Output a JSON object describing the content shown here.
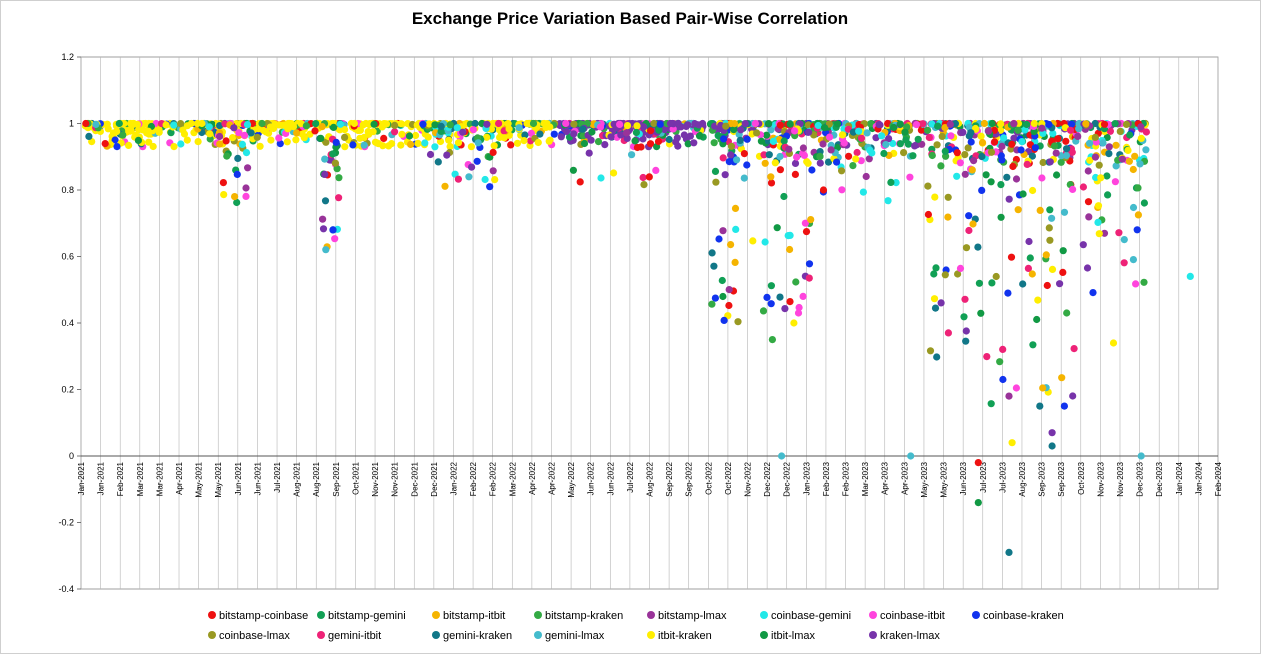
{
  "chart_data": {
    "type": "scatter",
    "title": "Exchange Price Variation Based Pair-Wise Correlation",
    "xlabel": "",
    "ylabel": "",
    "ylim": [
      -0.4,
      1.2
    ],
    "yticks": [
      "1.2",
      "1",
      "0.8",
      "0.6",
      "0.4",
      "0.2",
      "0",
      "-0.2",
      "-0.4"
    ],
    "x_tick_labels": [
      "Jan-2021",
      "Jan-2021",
      "Feb-2021",
      "Mar-2021",
      "Mar-2021",
      "Apr-2021",
      "May-2021",
      "May-2021",
      "Jun-2021",
      "Jun-2021",
      "Jul-2021",
      "Aug-2021",
      "Aug-2021",
      "Sep-2021",
      "Oct-2021",
      "Nov-2021",
      "Nov-2021",
      "Dec-2021",
      "Dec-2021",
      "Jan-2022",
      "Feb-2022",
      "Feb-2022",
      "Mar-2022",
      "Apr-2022",
      "Apr-2022",
      "May-2022",
      "Jun-2022",
      "Jun-2022",
      "Jul-2022",
      "Aug-2022",
      "Sep-2022",
      "Sep-2022",
      "Oct-2022",
      "Oct-2022",
      "Nov-2022",
      "Dec-2022",
      "Dec-2022",
      "Jan-2023",
      "Feb-2023",
      "Feb-2023",
      "Mar-2023",
      "Apr-2023",
      "Apr-2023",
      "May-2023",
      "May-2023",
      "Jun-2023",
      "Jul-2023",
      "Jul-2023",
      "Aug-2023",
      "Sep-2023",
      "Sep-2023",
      "Oct-2023",
      "Nov-2023",
      "Nov-2023",
      "Dec-2023",
      "Dec-2023",
      "Jan-2024",
      "Jan-2024",
      "Feb-2024"
    ],
    "x_range_months": [
      0,
      37
    ],
    "grid": "vertical",
    "legend_position": "bottom",
    "series": [
      {
        "name": "bitstamp-coinbase",
        "color": "#ee1111"
      },
      {
        "name": "bitstamp-gemini",
        "color": "#11a055"
      },
      {
        "name": "bitstamp-itbit",
        "color": "#f5b400"
      },
      {
        "name": "bitstamp-kraken",
        "color": "#33aa44"
      },
      {
        "name": "bitstamp-lmax",
        "color": "#993399"
      },
      {
        "name": "coinbase-gemini",
        "color": "#22e8e8"
      },
      {
        "name": "coinbase-itbit",
        "color": "#ff44dd"
      },
      {
        "name": "coinbase-kraken",
        "color": "#1133ee"
      },
      {
        "name": "coinbase-lmax",
        "color": "#999922"
      },
      {
        "name": "gemini-itbit",
        "color": "#ee2277"
      },
      {
        "name": "gemini-kraken",
        "color": "#117788"
      },
      {
        "name": "gemini-lmax",
        "color": "#44bbcc"
      },
      {
        "name": "itbit-kraken",
        "color": "#ffee00"
      },
      {
        "name": "itbit-lmax",
        "color": "#119944"
      },
      {
        "name": "kraken-lmax",
        "color": "#7733aa"
      }
    ],
    "notable_points": [
      {
        "series": "gemini-kraken",
        "month": 8.2,
        "value": 0.68
      },
      {
        "series": "coinbase-kraken",
        "month": 8.2,
        "value": 0.68
      },
      {
        "series": "bitstamp-itbit",
        "month": 5.0,
        "value": 0.78
      },
      {
        "series": "coinbase-kraken",
        "month": 13.3,
        "value": 0.81
      },
      {
        "series": "gemini-lmax",
        "month": 22.8,
        "value": 0.0
      },
      {
        "series": "gemini-lmax",
        "month": 27.0,
        "value": 0.0
      },
      {
        "series": "gemini-lmax",
        "month": 34.5,
        "value": 0.0
      },
      {
        "series": "bitstamp-kraken",
        "month": 22.5,
        "value": 0.35
      },
      {
        "series": "itbit-kraken",
        "month": 23.2,
        "value": 0.4
      },
      {
        "series": "coinbase-itbit",
        "month": 23.5,
        "value": 0.48
      },
      {
        "series": "itbit-lmax",
        "month": 29.2,
        "value": -0.14
      },
      {
        "series": "bitstamp-coinbase",
        "month": 29.2,
        "value": -0.02
      },
      {
        "series": "gemini-kraken",
        "month": 30.2,
        "value": -0.29
      },
      {
        "series": "itbit-kraken",
        "month": 30.3,
        "value": 0.04
      },
      {
        "series": "bitstamp-lmax",
        "month": 30.2,
        "value": 0.18
      },
      {
        "series": "coinbase-kraken",
        "month": 30.0,
        "value": 0.23
      },
      {
        "series": "gemini-kraken",
        "month": 31.2,
        "value": 0.15
      },
      {
        "series": "coinbase-kraken",
        "month": 32.0,
        "value": 0.15
      },
      {
        "series": "itbit-kraken",
        "month": 33.6,
        "value": 0.34
      },
      {
        "series": "coinbase-gemini",
        "month": 36.1,
        "value": 0.54
      },
      {
        "series": "kraken-lmax",
        "month": 31.6,
        "value": 0.07
      },
      {
        "series": "gemini-kraken",
        "month": 31.6,
        "value": 0.03
      }
    ]
  }
}
